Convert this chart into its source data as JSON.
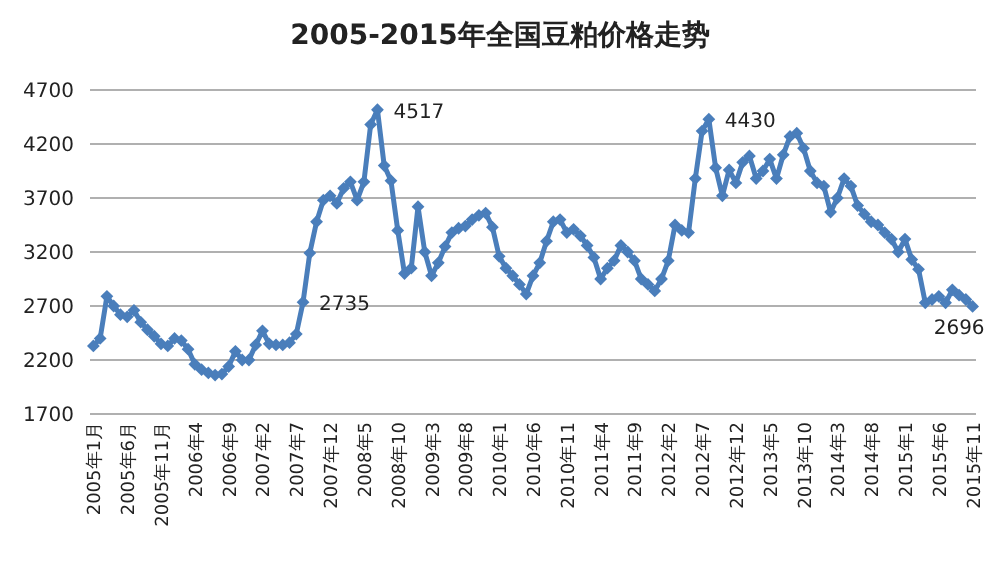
{
  "chart_data": {
    "type": "line",
    "title": "2005-2015年全国豆粕价格走势",
    "categories": [
      "2005年1月",
      null,
      null,
      null,
      null,
      "2005年6月",
      null,
      null,
      null,
      null,
      "2005年11月",
      null,
      null,
      null,
      null,
      "2006年4",
      null,
      null,
      null,
      null,
      "2006年9",
      null,
      null,
      null,
      null,
      "2007年2",
      null,
      null,
      null,
      null,
      "2007年7",
      null,
      null,
      null,
      null,
      "2007年12",
      null,
      null,
      null,
      null,
      "2008年5",
      null,
      null,
      null,
      null,
      "2008年10",
      null,
      null,
      null,
      null,
      "2009年3",
      null,
      null,
      null,
      null,
      "2009年8",
      null,
      null,
      null,
      null,
      "2010年1",
      null,
      null,
      null,
      null,
      "2010年6",
      null,
      null,
      null,
      null,
      "2010年11",
      null,
      null,
      null,
      null,
      "2011年4",
      null,
      null,
      null,
      null,
      "2011年9",
      null,
      null,
      null,
      null,
      "2012年2",
      null,
      null,
      null,
      null,
      "2012年7",
      null,
      null,
      null,
      null,
      "2012年12",
      null,
      null,
      null,
      null,
      "2013年5",
      null,
      null,
      null,
      null,
      "2013年10",
      null,
      null,
      null,
      null,
      "2014年3",
      null,
      null,
      null,
      null,
      "2014年8",
      null,
      null,
      null,
      null,
      "2015年1",
      null,
      null,
      null,
      null,
      "2015年6",
      null,
      null,
      null,
      null,
      "2015年11"
    ],
    "series": [
      {
        "color": "#4a7ebb",
        "values": [
          2330,
          2400,
          2790,
          2700,
          2620,
          2600,
          2660,
          2550,
          2480,
          2420,
          2350,
          2330,
          2400,
          2380,
          2300,
          2160,
          2110,
          2080,
          2060,
          2070,
          2140,
          2280,
          2200,
          2200,
          2340,
          2470,
          2350,
          2340,
          2340,
          2360,
          2440,
          2735,
          3190,
          3480,
          3680,
          3720,
          3650,
          3790,
          3850,
          3680,
          3850,
          4380,
          4517,
          4000,
          3860,
          3400,
          3000,
          3050,
          3620,
          3200,
          2980,
          3100,
          3250,
          3380,
          3420,
          3440,
          3500,
          3540,
          3560,
          3430,
          3160,
          3050,
          2980,
          2900,
          2810,
          2980,
          3100,
          3300,
          3480,
          3500,
          3380,
          3410,
          3350,
          3260,
          3150,
          2950,
          3050,
          3120,
          3260,
          3200,
          3120,
          2950,
          2900,
          2840,
          2950,
          3120,
          3450,
          3400,
          3380,
          3880,
          4320,
          4430,
          3980,
          3720,
          3960,
          3840,
          4030,
          4090,
          3880,
          3950,
          4060,
          3880,
          4100,
          4270,
          4300,
          4160,
          3950,
          3840,
          3810,
          3570,
          3700,
          3880,
          3810,
          3630,
          3550,
          3480,
          3450,
          3380,
          3320,
          3200,
          3320,
          3130,
          3040,
          2730,
          2760,
          2790,
          2730,
          2850,
          2800,
          2760,
          2696
        ],
        "value_labels": [
          null,
          null,
          null,
          null,
          null,
          null,
          null,
          null,
          null,
          null,
          null,
          null,
          null,
          null,
          null,
          null,
          null,
          null,
          null,
          null,
          null,
          null,
          null,
          null,
          null,
          null,
          null,
          null,
          null,
          null,
          null,
          "2735",
          null,
          null,
          null,
          null,
          null,
          null,
          null,
          null,
          null,
          null,
          "4517",
          null,
          null,
          null,
          null,
          null,
          null,
          null,
          null,
          null,
          null,
          null,
          null,
          null,
          null,
          null,
          null,
          null,
          null,
          null,
          null,
          null,
          null,
          null,
          null,
          null,
          null,
          null,
          null,
          null,
          null,
          null,
          null,
          null,
          null,
          null,
          null,
          null,
          null,
          null,
          null,
          null,
          null,
          null,
          null,
          null,
          null,
          null,
          null,
          "4430",
          null,
          null,
          null,
          null,
          null,
          null,
          null,
          null,
          null,
          null,
          null,
          null,
          null,
          null,
          null,
          null,
          null,
          null,
          null,
          null,
          null,
          null,
          null,
          null,
          null,
          null,
          null,
          null,
          null,
          null,
          null,
          null,
          null,
          null,
          null,
          null,
          null,
          null,
          "2696"
        ]
      }
    ],
    "ylim": [
      1700,
      4700
    ],
    "yticks": [
      1700,
      2200,
      2700,
      3200,
      3700,
      4200,
      4700
    ],
    "grid": "y",
    "marker": "diamond",
    "line_style": "solid"
  }
}
